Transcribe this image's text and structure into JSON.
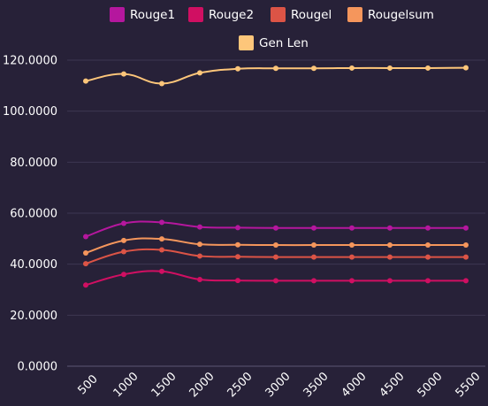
{
  "chart_data": {
    "type": "line",
    "x": [
      500,
      1000,
      1500,
      2000,
      2500,
      3000,
      3500,
      4000,
      4500,
      5000,
      5500
    ],
    "x_tick_labels": [
      "500",
      "1000",
      "1500",
      "2000",
      "2500",
      "3000",
      "3500",
      "4000",
      "4500",
      "5000",
      "5500"
    ],
    "y_tick_labels": [
      "0.0000",
      "20.0000",
      "40.0000",
      "60.0000",
      "80.0000",
      "100.0000",
      "120.0000"
    ],
    "ylim": [
      0,
      120
    ],
    "y_ticks": [
      0,
      20,
      40,
      60,
      80,
      100,
      120
    ],
    "grid": true,
    "legend_position": "top-center",
    "series": [
      {
        "name": "Rouge1",
        "color": "#b5179e",
        "values": [
          50.8,
          56.0,
          56.4,
          54.6,
          54.3,
          54.2,
          54.2,
          54.2,
          54.2,
          54.2,
          54.2
        ]
      },
      {
        "name": "Rouge2",
        "color": "#d00f62",
        "values": [
          31.8,
          36.0,
          37.2,
          34.0,
          33.6,
          33.5,
          33.5,
          33.5,
          33.5,
          33.5,
          33.5
        ]
      },
      {
        "name": "Rougel",
        "color": "#dc5446",
        "values": [
          40.2,
          44.9,
          45.6,
          43.2,
          42.9,
          42.8,
          42.8,
          42.8,
          42.8,
          42.8,
          42.8
        ]
      },
      {
        "name": "Rougelsum",
        "color": "#f5965c",
        "values": [
          44.4,
          49.3,
          49.9,
          47.8,
          47.6,
          47.5,
          47.5,
          47.5,
          47.5,
          47.5,
          47.5
        ]
      },
      {
        "name": "Gen Len",
        "color": "#fdc67a",
        "values": [
          111.8,
          114.6,
          110.8,
          115.0,
          116.6,
          116.8,
          116.8,
          116.9,
          116.9,
          116.9,
          117.0
        ]
      }
    ]
  }
}
